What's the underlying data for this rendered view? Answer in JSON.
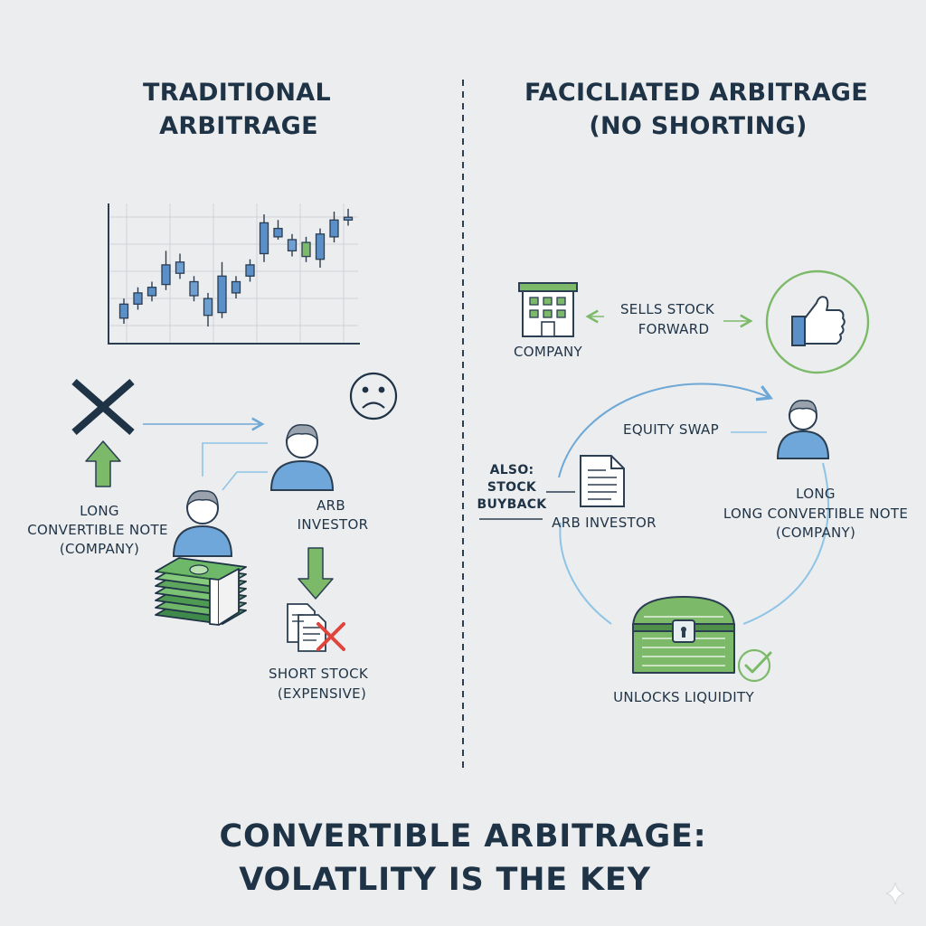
{
  "left_panel": {
    "title_line1": "TRADITIONAL",
    "title_line2": "ARBITRAGE",
    "long_note": [
      "LONG",
      "CONVERTIBLE NOTE",
      "(COMPANY)"
    ],
    "investor": [
      "ARB",
      "INVESTOR"
    ],
    "short_stock": [
      "SHORT STOCK",
      "(EXPENSIVE)"
    ]
  },
  "right_panel": {
    "title_line1": "FACICLIATED ARBITRAGE",
    "title_line2": "(NO SHORTING)",
    "company": "COMPANY",
    "sells_forward": [
      "SELLS STOCK",
      "FORWARD"
    ],
    "equity_swap": "EQUITY SWAP",
    "also_buyback": [
      "ALSO:",
      "STOCK",
      "BUYBACK"
    ],
    "arb_investor": "ARB INVESTOR",
    "long_note": [
      "LONG",
      "LONG CONVERTIBLE NOTE",
      "(COMPANY)"
    ],
    "unlocks": "UNLOCKS LIQUIDITY"
  },
  "footer": {
    "line1": "CONVERTIBLE ARBITRAGE:",
    "line2": "VOLATLITY IS THE KEY"
  },
  "candles": [
    {
      "o": 2,
      "c": 7,
      "h": 9,
      "l": 0
    },
    {
      "o": 7,
      "c": 11,
      "h": 13,
      "l": 5
    },
    {
      "o": 10,
      "c": 13,
      "h": 15,
      "l": 8
    },
    {
      "o": 14,
      "c": 21,
      "h": 26,
      "l": 12
    },
    {
      "o": 22,
      "c": 18,
      "h": 25,
      "l": 16
    },
    {
      "o": 15,
      "c": 10,
      "h": 17,
      "l": 8
    },
    {
      "o": 9,
      "c": 3,
      "h": 11,
      "l": -1
    },
    {
      "o": 4,
      "c": 17,
      "h": 22,
      "l": 2
    },
    {
      "o": 11,
      "c": 15,
      "h": 17,
      "l": 9
    },
    {
      "o": 17,
      "c": 21,
      "h": 23,
      "l": 15
    },
    {
      "o": 25,
      "c": 36,
      "h": 39,
      "l": 22
    },
    {
      "o": 31,
      "c": 34,
      "h": 37,
      "l": 30
    },
    {
      "o": 30,
      "c": 26,
      "h": 32,
      "l": 24
    },
    {
      "o": 24,
      "c": 29,
      "h": 31,
      "l": 22
    },
    {
      "o": 23,
      "c": 32,
      "h": 34,
      "l": 20
    },
    {
      "o": 31,
      "c": 37,
      "h": 40,
      "l": 29
    },
    {
      "o": 38,
      "c": 37,
      "h": 41,
      "l": 35
    }
  ],
  "colors": {
    "text": "#1f3347",
    "blue": "#5b8fc7",
    "light_blue": "#8ec4e6",
    "green": "#7cba6a",
    "dark_green": "#4f8f4a",
    "red": "#e0443d",
    "background": "#ecedee"
  }
}
